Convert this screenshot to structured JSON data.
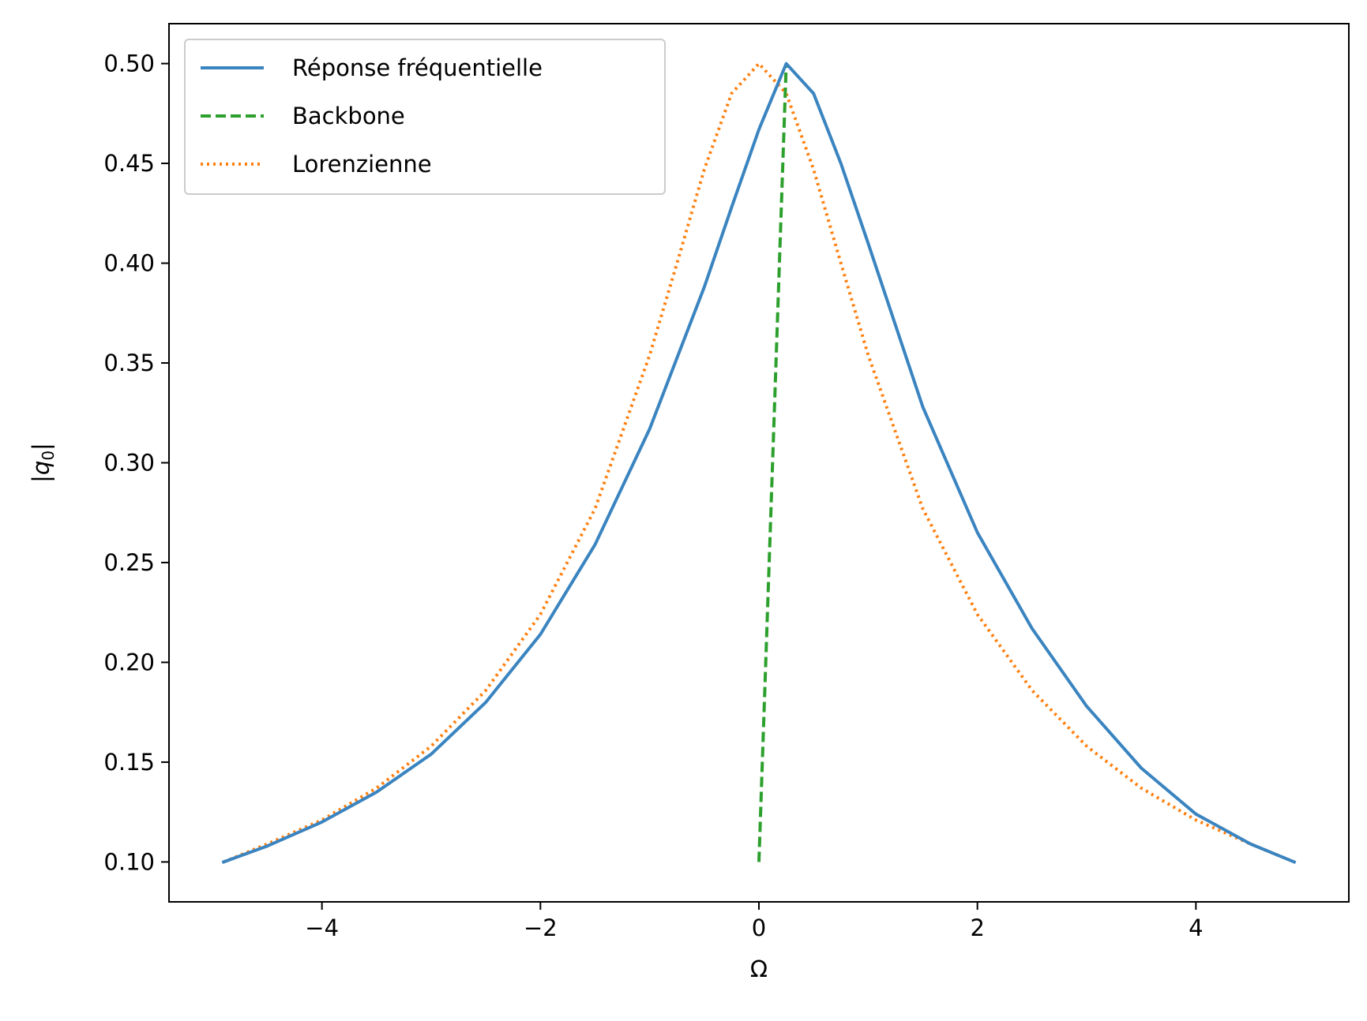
{
  "chart_data": {
    "type": "line",
    "title": "",
    "xlabel": "Ω",
    "ylabel_main": "|q",
    "ylabel_sub": "0",
    "ylabel_close": "|",
    "xlim": [
      -5.4,
      5.4
    ],
    "ylim": [
      0.08,
      0.52
    ],
    "x_ticks": [
      -4,
      -2,
      0,
      2,
      4
    ],
    "x_tick_labels": [
      "−4",
      "−2",
      "0",
      "2",
      "4"
    ],
    "y_ticks": [
      0.1,
      0.15,
      0.2,
      0.25,
      0.3,
      0.35,
      0.4,
      0.45,
      0.5
    ],
    "y_tick_labels": [
      "0.10",
      "0.15",
      "0.20",
      "0.25",
      "0.30",
      "0.35",
      "0.40",
      "0.45",
      "0.50"
    ],
    "grid": false,
    "legend_position": "top-left",
    "series": [
      {
        "name": "Réponse fréquentielle",
        "color": "#3a84c0",
        "style": "solid",
        "x": [
          -4.9,
          -4.5,
          -4.0,
          -3.5,
          -3.0,
          -2.5,
          -2.0,
          -1.5,
          -1.0,
          -0.5,
          -0.25,
          0.0,
          0.25,
          0.5,
          0.75,
          1.0,
          1.5,
          2.0,
          2.5,
          3.0,
          3.5,
          4.0,
          4.5,
          4.9
        ],
        "y": [
          0.1,
          0.108,
          0.12,
          0.135,
          0.154,
          0.18,
          0.214,
          0.259,
          0.317,
          0.388,
          0.428,
          0.467,
          0.5,
          0.485,
          0.45,
          0.41,
          0.328,
          0.265,
          0.217,
          0.178,
          0.147,
          0.124,
          0.109,
          0.1
        ]
      },
      {
        "name": "Backbone",
        "color": "#2ca02c",
        "style": "dashed",
        "x": [
          0.0,
          0.25
        ],
        "y": [
          0.1,
          0.5
        ]
      },
      {
        "name": "Lorenzienne",
        "color": "#ff7f0e",
        "style": "dotted",
        "x": [
          -4.9,
          -4.5,
          -4.0,
          -3.5,
          -3.0,
          -2.5,
          -2.0,
          -1.5,
          -1.0,
          -0.75,
          -0.5,
          -0.25,
          0.0,
          0.25,
          0.5,
          0.75,
          1.0,
          1.5,
          2.0,
          2.5,
          3.0,
          3.5,
          4.0,
          4.5,
          4.9
        ],
        "y": [
          0.1,
          0.109,
          0.121,
          0.137,
          0.158,
          0.186,
          0.224,
          0.277,
          0.354,
          0.4,
          0.447,
          0.485,
          0.5,
          0.485,
          0.447,
          0.4,
          0.354,
          0.277,
          0.224,
          0.186,
          0.158,
          0.137,
          0.121,
          0.109,
          0.1
        ]
      }
    ]
  }
}
